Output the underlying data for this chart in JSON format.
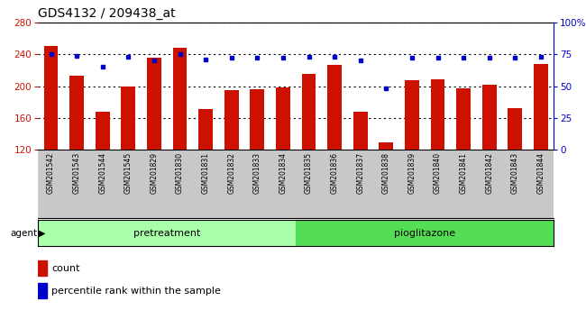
{
  "title": "GDS4132 / 209438_at",
  "samples": [
    "GSM201542",
    "GSM201543",
    "GSM201544",
    "GSM201545",
    "GSM201829",
    "GSM201830",
    "GSM201831",
    "GSM201832",
    "GSM201833",
    "GSM201834",
    "GSM201835",
    "GSM201836",
    "GSM201837",
    "GSM201838",
    "GSM201839",
    "GSM201840",
    "GSM201841",
    "GSM201842",
    "GSM201843",
    "GSM201844"
  ],
  "counts": [
    250,
    213,
    168,
    200,
    236,
    248,
    171,
    195,
    196,
    198,
    215,
    227,
    168,
    130,
    207,
    208,
    197,
    202,
    172,
    228
  ],
  "percentile_ranks": [
    75,
    74,
    65,
    73,
    70,
    75,
    71,
    72,
    72,
    72,
    73,
    73,
    70,
    48,
    72,
    72,
    72,
    72,
    72,
    73
  ],
  "pretreatment_count": 10,
  "pioglitazone_count": 10,
  "bar_color": "#CC1100",
  "dot_color": "#0000CC",
  "pretreatment_color": "#AAFFAA",
  "pioglitazone_color": "#55DD55",
  "xticklabel_bg": "#C8C8C8",
  "ylim_left": [
    120,
    280
  ],
  "ylim_right": [
    0,
    100
  ],
  "left_yticks": [
    120,
    160,
    200,
    240,
    280
  ],
  "right_yticks": [
    0,
    25,
    50,
    75,
    100
  ],
  "right_yticklabels": [
    "0",
    "25",
    "50",
    "75",
    "100%"
  ],
  "bar_width": 0.55
}
